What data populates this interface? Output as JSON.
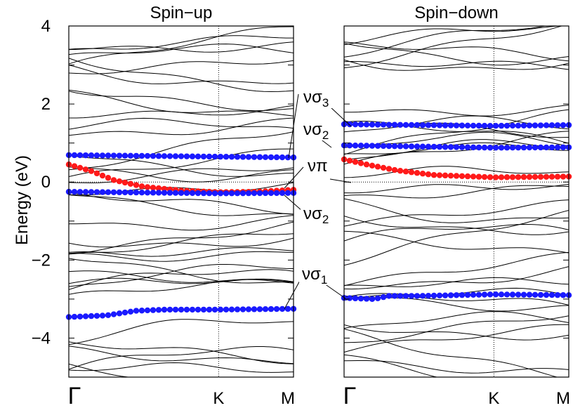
{
  "chart_data": [
    {
      "type": "line",
      "title": "Spin−up",
      "ylabel": "Energy (eV)",
      "ylim": [
        -5,
        4
      ],
      "yticks": [
        4,
        2,
        0,
        -2,
        -4
      ],
      "ytick_labels": [
        "4",
        "2",
        "0",
        "−2",
        "−4"
      ],
      "xtick_labels": [
        "Γ",
        "K",
        "M"
      ],
      "k_axis": [
        0,
        2.0,
        3.0
      ],
      "fermi_level": 0,
      "grid": "dotted lines at E=0 and at K",
      "band_color": "#000000",
      "highlight_series": [
        {
          "color": "#1a1aff",
          "values": [
            [
              0,
              0.69
            ],
            [
              0.5,
              0.68
            ],
            [
              1.0,
              0.67
            ],
            [
              1.5,
              0.66
            ],
            [
              2.0,
              0.65
            ],
            [
              3.0,
              0.63
            ]
          ]
        },
        {
          "color": "#ff1a1a",
          "values": [
            [
              0,
              0.45
            ],
            [
              0.3,
              0.28
            ],
            [
              0.6,
              0.05
            ],
            [
              1.0,
              -0.12
            ],
            [
              1.5,
              -0.22
            ],
            [
              2.0,
              -0.26
            ],
            [
              2.5,
              -0.25
            ],
            [
              3.0,
              -0.2
            ]
          ]
        },
        {
          "color": "#1a1aff",
          "values": [
            [
              0,
              -0.25
            ],
            [
              1.0,
              -0.27
            ],
            [
              2.0,
              -0.29
            ],
            [
              3.0,
              -0.28
            ]
          ]
        },
        {
          "color": "#1a1aff",
          "values": [
            [
              0,
              -3.46
            ],
            [
              0.5,
              -3.42
            ],
            [
              0.9,
              -3.3
            ],
            [
              1.3,
              -3.27
            ],
            [
              2.0,
              -3.27
            ],
            [
              3.0,
              -3.25
            ]
          ]
        }
      ],
      "annotations": [
        {
          "text": "νσ",
          "sub": "3"
        },
        {
          "text": "νσ",
          "sub": "2"
        },
        {
          "text": "νπ",
          "sub": ""
        },
        {
          "text": "νσ",
          "sub": "2"
        },
        {
          "text": "νσ",
          "sub": "1"
        }
      ]
    },
    {
      "type": "line",
      "title": "Spin−down",
      "ylim": [
        -5,
        4
      ],
      "xtick_labels": [
        "Γ",
        "K",
        "M"
      ],
      "k_axis": [
        0,
        2.0,
        3.0
      ],
      "fermi_level": 0,
      "grid": "dotted lines at E=0 and at K",
      "band_color": "#000000",
      "highlight_series": [
        {
          "color": "#1a1aff",
          "values": [
            [
              0,
              1.48
            ],
            [
              1.0,
              1.46
            ],
            [
              2.0,
              1.44
            ],
            [
              3.0,
              1.46
            ]
          ]
        },
        {
          "color": "#1a1aff",
          "values": [
            [
              0,
              0.94
            ],
            [
              1.0,
              0.91
            ],
            [
              2.0,
              0.88
            ],
            [
              3.0,
              0.89
            ]
          ]
        },
        {
          "color": "#ff1a1a",
          "values": [
            [
              0,
              0.58
            ],
            [
              0.3,
              0.45
            ],
            [
              0.7,
              0.3
            ],
            [
              1.2,
              0.18
            ],
            [
              2.0,
              0.12
            ],
            [
              3.0,
              0.14
            ]
          ]
        },
        {
          "color": "#1a1aff",
          "values": [
            [
              0,
              -2.97
            ],
            [
              0.4,
              -3.0
            ],
            [
              0.6,
              -2.92
            ],
            [
              1.0,
              -2.92
            ],
            [
              2.0,
              -2.88
            ],
            [
              3.0,
              -2.9
            ]
          ]
        }
      ]
    }
  ]
}
